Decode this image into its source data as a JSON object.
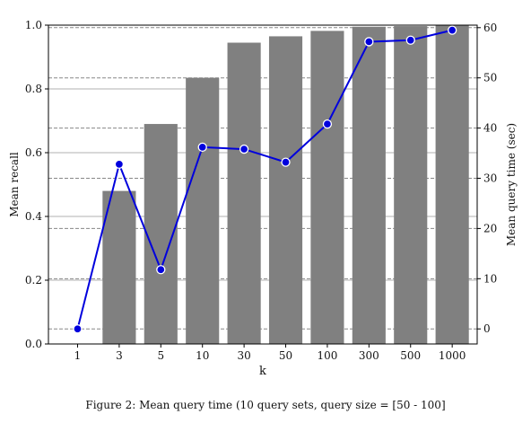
{
  "chart_data": {
    "type": "bar",
    "categories": [
      "1",
      "3",
      "5",
      "10",
      "30",
      "50",
      "100",
      "300",
      "500",
      "1000"
    ],
    "series": [
      {
        "type": "bar",
        "axis": "left",
        "color": "#808080",
        "values": [
          0.0,
          0.48,
          0.69,
          0.835,
          0.945,
          0.965,
          0.982,
          0.995,
          0.997,
          1.0
        ]
      },
      {
        "type": "line",
        "axis": "right",
        "color": "#0000dd",
        "values": [
          0.0,
          32.8,
          11.8,
          36.2,
          35.8,
          33.2,
          40.8,
          57.2,
          57.5,
          59.5
        ]
      }
    ],
    "xlabel": "k",
    "ylabel": "Mean recall",
    "y2label": "Mean query time (sec)",
    "ylim": [
      0,
      1.0
    ],
    "y2lim": [
      -3,
      60.5
    ],
    "yticks": [
      "0.0",
      "0.2",
      "0.4",
      "0.6",
      "0.8",
      "1.0"
    ],
    "y2ticks": [
      "0",
      "10",
      "20",
      "30",
      "40",
      "50",
      "60"
    ],
    "grid": true
  },
  "caption": "Figure 2: Mean query time (10 query sets, query size = [50 - 100]"
}
